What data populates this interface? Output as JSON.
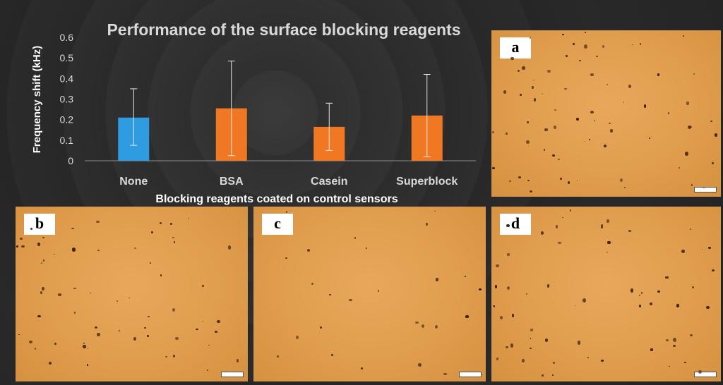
{
  "chart_data": {
    "type": "bar",
    "title": "Performance of the surface blocking reagents",
    "xlabel": "Blocking reagents coated on control sensors",
    "ylabel": "Frequency shift (kHz)",
    "ylim": [
      0,
      0.6
    ],
    "yticks": [
      "0",
      "0.1",
      "0.2",
      "0.3",
      "0.4",
      "0.5",
      "0.6"
    ],
    "categories": [
      "None",
      "BSA",
      "Casein",
      "Superblock"
    ],
    "values": [
      0.21,
      0.255,
      0.165,
      0.22
    ],
    "error_low": [
      0.075,
      0.025,
      0.05,
      0.02
    ],
    "error_high": [
      0.35,
      0.485,
      0.28,
      0.42
    ],
    "bar_colors": [
      "#2f9be0",
      "#f07823",
      "#f07823",
      "#f07823"
    ],
    "grid": false
  },
  "panels": [
    {
      "label": "a"
    },
    {
      "label": "b"
    },
    {
      "label": "c"
    },
    {
      "label": "d"
    }
  ]
}
